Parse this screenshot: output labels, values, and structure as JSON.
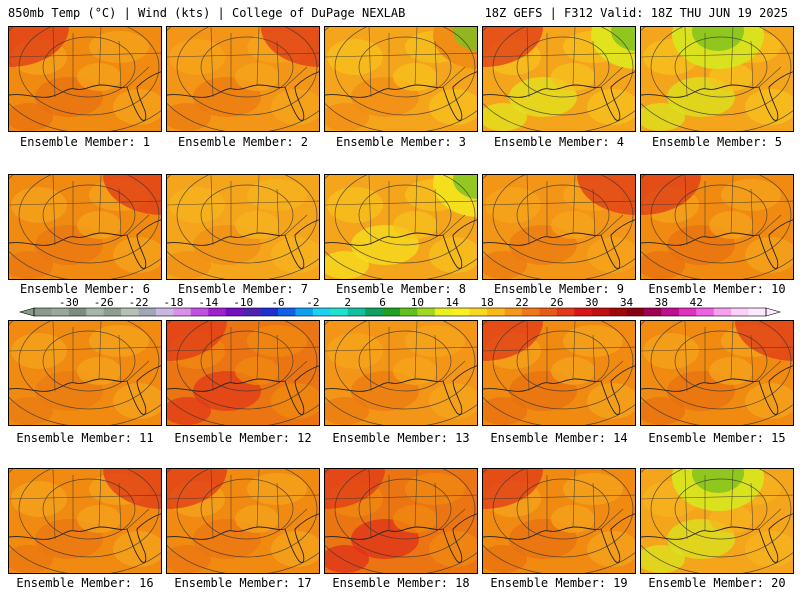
{
  "header": {
    "left": "850mb Temp (°C) | Wind (kts) | College of DuPage NEXLAB",
    "right": "18Z GEFS | F312 Valid: 18Z THU JUN 19 2025"
  },
  "member_prefix": "Ensemble Member: ",
  "panels": [
    {
      "member": "1",
      "tone": [
        "#f5a31c",
        "#f08a10",
        "#e8700f"
      ],
      "warm": "nw",
      "cool": null
    },
    {
      "member": "2",
      "tone": [
        "#f5a51c",
        "#f39516",
        "#eb7b12"
      ],
      "warm": "ne",
      "cool": null
    },
    {
      "member": "3",
      "tone": [
        "#f7c21e",
        "#f5a51c",
        "#f08c14"
      ],
      "warm": null,
      "cool": "ne"
    },
    {
      "member": "4",
      "tone": [
        "#f7c21e",
        "#f5a51c",
        "#e0e41e"
      ],
      "warm": "nw",
      "cool": "ne"
    },
    {
      "member": "5",
      "tone": [
        "#f7c21e",
        "#f5a51c",
        "#d8e41e"
      ],
      "warm": null,
      "cool": "n"
    },
    {
      "member": "6",
      "tone": [
        "#f5a31c",
        "#f08a10",
        "#eb7512"
      ],
      "warm": "ne",
      "cool": null
    },
    {
      "member": "7",
      "tone": [
        "#f7b41e",
        "#f5a51c",
        "#f09016"
      ],
      "warm": null,
      "cool": null
    },
    {
      "member": "8",
      "tone": [
        "#f7c21e",
        "#f5a51c",
        "#f4e01e"
      ],
      "warm": null,
      "cool": "ne"
    },
    {
      "member": "9",
      "tone": [
        "#f5a51c",
        "#f39516",
        "#eb7b12"
      ],
      "warm": "ne",
      "cool": null
    },
    {
      "member": "10",
      "tone": [
        "#f5a31c",
        "#f08a10",
        "#e8700f"
      ],
      "warm": "nw",
      "cool": null
    },
    {
      "member": "11",
      "tone": [
        "#f5a31c",
        "#f08a10",
        "#eb7b12"
      ],
      "warm": null,
      "cool": null
    },
    {
      "member": "12",
      "tone": [
        "#f08a10",
        "#eb7512",
        "#e03a18"
      ],
      "warm": "nw",
      "cool": null
    },
    {
      "member": "13",
      "tone": [
        "#f5a51c",
        "#f39516",
        "#eb7b12"
      ],
      "warm": null,
      "cool": null
    },
    {
      "member": "14",
      "tone": [
        "#f5a31c",
        "#f08a10",
        "#e8700f"
      ],
      "warm": "nw",
      "cool": null
    },
    {
      "member": "15",
      "tone": [
        "#f5a31c",
        "#f08a10",
        "#e8700f"
      ],
      "warm": "ne",
      "cool": null
    },
    {
      "member": "16",
      "tone": [
        "#f5a31c",
        "#f08a10",
        "#eb7512"
      ],
      "warm": "ne",
      "cool": null
    },
    {
      "member": "17",
      "tone": [
        "#f5a31c",
        "#f08a10",
        "#eb7512"
      ],
      "warm": "nw",
      "cool": null
    },
    {
      "member": "18",
      "tone": [
        "#f08a10",
        "#eb7512",
        "#e0301a"
      ],
      "warm": "nw",
      "cool": null
    },
    {
      "member": "19",
      "tone": [
        "#f5a31c",
        "#f08a10",
        "#e8700f"
      ],
      "warm": "nw",
      "cool": null
    },
    {
      "member": "20",
      "tone": [
        "#f7b41e",
        "#f5a51c",
        "#d8e41e"
      ],
      "warm": null,
      "cool": "n"
    }
  ],
  "colorbar": {
    "labels": [
      "-30",
      "-26",
      "-22",
      "-18",
      "-14",
      "-10",
      "-6",
      "-2",
      "2",
      "6",
      "10",
      "14",
      "18",
      "22",
      "26",
      "30",
      "34",
      "38",
      "42"
    ],
    "colors": [
      "#8a9a8a",
      "#9aa89a",
      "#7e8e7e",
      "#a6b6a6",
      "#8e9e8e",
      "#b6c0b6",
      "#a0a8b8",
      "#c8b8e0",
      "#d890e8",
      "#c050e0",
      "#a020d0",
      "#7010c0",
      "#5020b0",
      "#2030d0",
      "#1060e8",
      "#10a0f0",
      "#20d0f0",
      "#20e0d0",
      "#10c0a0",
      "#10a060",
      "#20a020",
      "#60c020",
      "#a0d820",
      "#e8f020",
      "#f8f020",
      "#f8d820",
      "#f8b818",
      "#f59818",
      "#f07818",
      "#e85a18",
      "#e03a18",
      "#d81818",
      "#c01010",
      "#a00808",
      "#880010",
      "#a00050",
      "#c01090",
      "#e030c0",
      "#f060e0",
      "#f8a0f0",
      "#fcd0f8",
      "#ffe8ff"
    ]
  }
}
